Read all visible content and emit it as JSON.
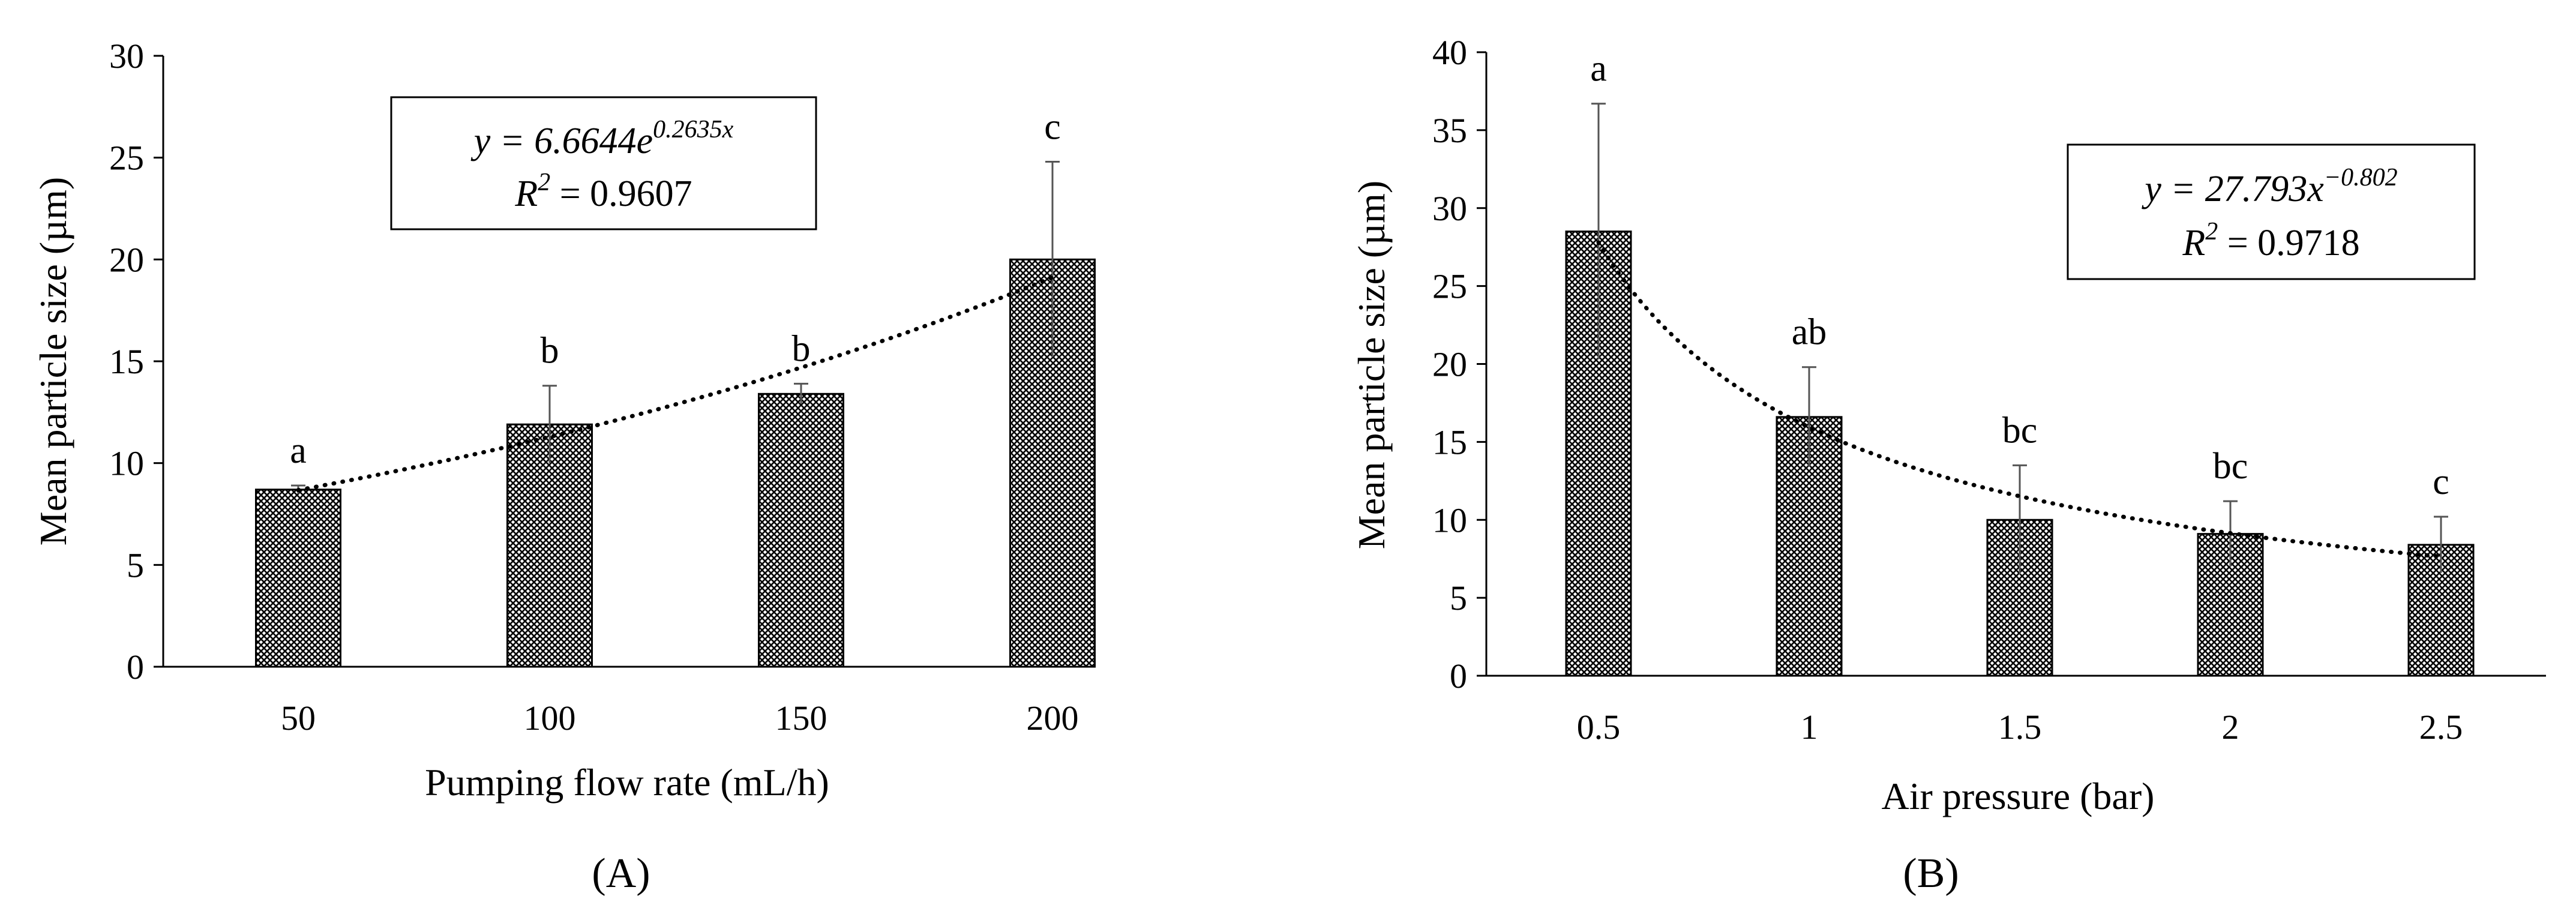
{
  "chart_data": [
    {
      "type": "bar",
      "panel_label": "(A)",
      "title": "",
      "xlabel": "Pumping flow rate (mL/h)",
      "ylabel": "Mean particle size (µm)",
      "ylim": [
        0,
        30
      ],
      "yticks": [
        0,
        5,
        10,
        15,
        20,
        25,
        30
      ],
      "grid": false,
      "categories": [
        "50",
        "100",
        "150",
        "200"
      ],
      "values": [
        8.7,
        11.9,
        13.4,
        20.0
      ],
      "error_bars": [
        0.2,
        1.9,
        0.5,
        4.8
      ],
      "significance_letters": [
        "a",
        "b",
        "b",
        "c"
      ],
      "trendline": {
        "type": "exponential",
        "a": 6.6644,
        "b": 0.2635,
        "equation_line1": "y = 6.6644e",
        "equation_exponent": "0.2635x",
        "equation_line2": "R",
        "r2_superscript": "2",
        "r2_value": " = 0.9607"
      },
      "equation_box_position": "top-center"
    },
    {
      "type": "bar",
      "panel_label": "(B)",
      "title": "",
      "xlabel": "Air pressure (bar)",
      "ylabel": "Mean particle size (µm)",
      "ylim": [
        0,
        40
      ],
      "yticks": [
        0,
        5,
        10,
        15,
        20,
        25,
        30,
        35,
        40
      ],
      "grid": false,
      "categories": [
        "0.5",
        "1",
        "1.5",
        "2",
        "2.5"
      ],
      "values": [
        28.5,
        16.6,
        10.0,
        9.1,
        8.4
      ],
      "error_bars": [
        8.2,
        3.2,
        3.5,
        2.1,
        1.8
      ],
      "significance_letters": [
        "a",
        "ab",
        "bc",
        "bc",
        "c"
      ],
      "trendline": {
        "type": "power",
        "a": 27.793,
        "b": -0.802,
        "equation_line1": "y = 27.793x",
        "equation_exponent": "−0.802",
        "equation_line2": "R",
        "r2_superscript": "2",
        "r2_value": " = 0.9718"
      },
      "equation_box_position": "top-right"
    }
  ]
}
